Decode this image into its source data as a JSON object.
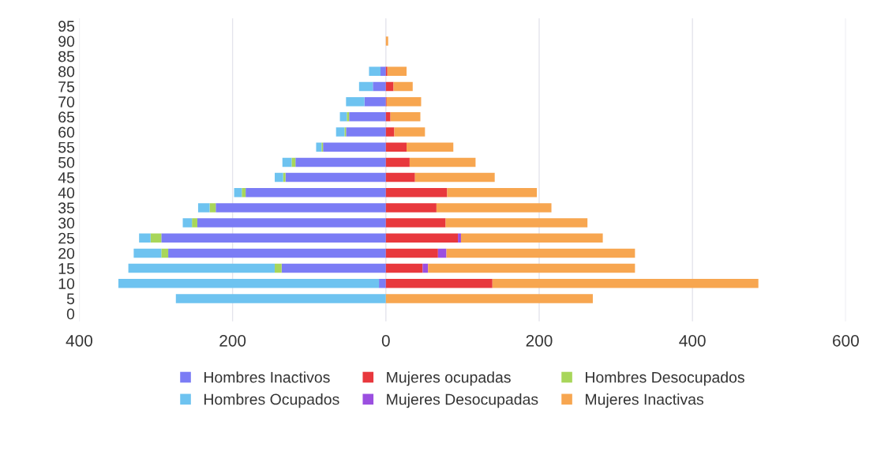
{
  "chart_data": {
    "type": "bar",
    "orientation": "horizontal",
    "stacked": true,
    "categories": [
      "95",
      "90",
      "85",
      "80",
      "75",
      "70",
      "65",
      "60",
      "55",
      "50",
      "45",
      "40",
      "35",
      "30",
      "25",
      "20",
      "15",
      "10",
      "5",
      "0"
    ],
    "series": [
      {
        "name": "Hombres Inactivos",
        "color": "#7b7cf5",
        "values": [
          null,
          null,
          null,
          -7,
          -17,
          -28,
          -48,
          -52,
          -82,
          -118,
          -131,
          -183,
          -222,
          -246,
          -293,
          -284,
          -136,
          -9,
          null,
          null
        ]
      },
      {
        "name": "Mujeres ocupadas",
        "color": "#e8383d",
        "values": [
          null,
          null,
          null,
          2,
          10,
          1,
          6,
          11,
          27,
          31,
          38,
          80,
          66,
          78,
          94,
          68,
          48,
          139,
          null,
          null
        ]
      },
      {
        "name": "Hombres Desocupados",
        "color": "#a8d65a",
        "values": [
          null,
          null,
          null,
          null,
          null,
          null,
          -3,
          -2,
          -2,
          -5,
          -3,
          -5,
          -8,
          -7,
          -14,
          -9,
          -9,
          null,
          null,
          null
        ]
      },
      {
        "name": "Hombres Ocupados",
        "color": "#6ec3f0",
        "values": [
          null,
          null,
          null,
          -15,
          -18,
          -24,
          -9,
          -11,
          -7,
          -12,
          -11,
          -10,
          -15,
          -12,
          -15,
          -36,
          -191,
          -340,
          -274,
          null
        ]
      },
      {
        "name": "Mujeres Desocupadas",
        "color": "#9b4fe0",
        "values": [
          null,
          null,
          null,
          null,
          null,
          null,
          null,
          null,
          null,
          null,
          null,
          null,
          null,
          null,
          4,
          11,
          7,
          null,
          null,
          null
        ]
      },
      {
        "name": "Mujeres Inactivas",
        "color": "#f7a650",
        "values": [
          null,
          3,
          null,
          25,
          25,
          45,
          39,
          40,
          61,
          86,
          104,
          117,
          150,
          185,
          185,
          246,
          270,
          347,
          270,
          null
        ]
      }
    ],
    "xlim": [
      -400,
      600
    ],
    "xticks": [
      {
        "value": -400,
        "label": "400"
      },
      {
        "value": -200,
        "label": "200"
      },
      0,
      200,
      400,
      600
    ],
    "grid": "x",
    "legend": "bottom"
  }
}
